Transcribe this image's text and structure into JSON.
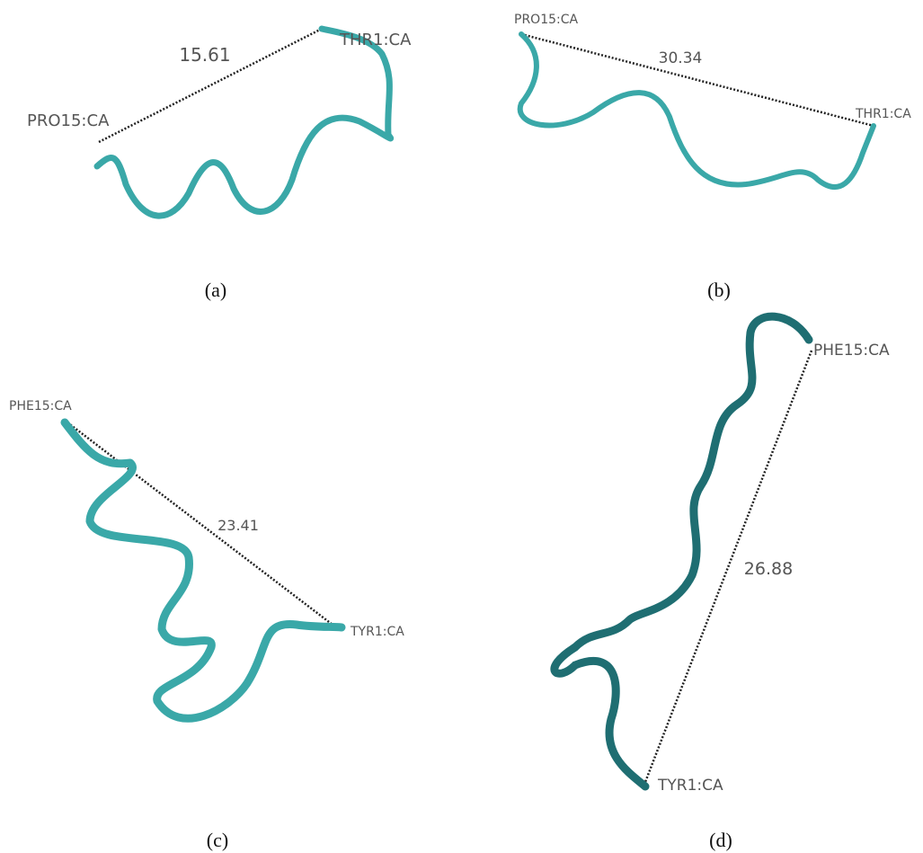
{
  "panels": [
    {
      "caption": "(a)",
      "distance": "15.61",
      "start_atom": "PRO15:CA",
      "end_atom": "THR1:CA"
    },
    {
      "caption": "(b)",
      "distance": "30.34",
      "start_atom": "PRO15:CA",
      "end_atom": "THR1:CA"
    },
    {
      "caption": "(c)",
      "distance": "23.41",
      "start_atom": "PHE15:CA",
      "end_atom": "TYR1:CA"
    },
    {
      "caption": "(d)",
      "distance": "26.88",
      "start_atom": "PHE15:CA",
      "end_atom": "TYR1:CA"
    }
  ]
}
